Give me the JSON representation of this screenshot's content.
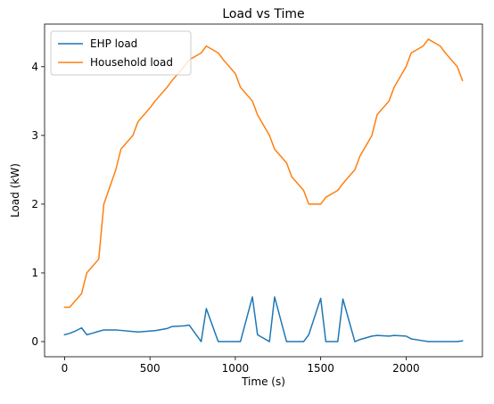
{
  "chart_data": {
    "type": "line",
    "title": "Load vs Time",
    "xlabel": "Time (s)",
    "ylabel": "Load (kW)",
    "xlim": [
      -117,
      2447
    ],
    "ylim": [
      -0.22,
      4.62
    ],
    "xticks": [
      0,
      500,
      1000,
      1500,
      2000
    ],
    "yticks": [
      0,
      1,
      2,
      3,
      4
    ],
    "grid": false,
    "legend_position": "top-left",
    "series": [
      {
        "name": "EHP load",
        "color": "#1f77b4",
        "x": [
          0,
          30,
          60,
          100,
          130,
          160,
          200,
          230,
          300,
          430,
          530,
          600,
          630,
          700,
          730,
          800,
          830,
          900,
          960,
          1030,
          1100,
          1130,
          1200,
          1230,
          1300,
          1330,
          1400,
          1430,
          1500,
          1530,
          1600,
          1630,
          1700,
          1730,
          1800,
          1830,
          1900,
          1930,
          2000,
          2030,
          2130,
          2300,
          2330
        ],
        "y": [
          0.1,
          0.12,
          0.15,
          0.2,
          0.1,
          0.12,
          0.15,
          0.17,
          0.17,
          0.14,
          0.16,
          0.19,
          0.22,
          0.23,
          0.24,
          0.0,
          0.48,
          0.0,
          0.0,
          0.0,
          0.65,
          0.1,
          0.0,
          0.65,
          0.0,
          0.0,
          0.0,
          0.1,
          0.63,
          0.0,
          0.0,
          0.62,
          0.0,
          0.03,
          0.08,
          0.09,
          0.08,
          0.09,
          0.08,
          0.04,
          0.0,
          0.0,
          0.01
        ]
      },
      {
        "name": "Household load",
        "color": "#ff7f0e",
        "x": [
          0,
          30,
          100,
          130,
          200,
          230,
          300,
          330,
          400,
          430,
          500,
          530,
          600,
          630,
          700,
          730,
          800,
          830,
          900,
          930,
          1000,
          1030,
          1100,
          1130,
          1200,
          1230,
          1300,
          1330,
          1400,
          1430,
          1500,
          1530,
          1600,
          1630,
          1700,
          1730,
          1800,
          1830,
          1900,
          1930,
          2000,
          2030,
          2100,
          2130,
          2200,
          2230,
          2300,
          2330
        ],
        "y": [
          0.5,
          0.5,
          0.7,
          1.0,
          1.2,
          2.0,
          2.5,
          2.8,
          3.0,
          3.2,
          3.4,
          3.5,
          3.7,
          3.8,
          4.0,
          4.1,
          4.2,
          4.3,
          4.2,
          4.1,
          3.9,
          3.7,
          3.5,
          3.3,
          3.0,
          2.8,
          2.6,
          2.4,
          2.2,
          2.0,
          2.0,
          2.1,
          2.2,
          2.3,
          2.5,
          2.7,
          3.0,
          3.3,
          3.5,
          3.7,
          4.0,
          4.2,
          4.3,
          4.4,
          4.3,
          4.2,
          4.0,
          3.8
        ]
      }
    ]
  }
}
